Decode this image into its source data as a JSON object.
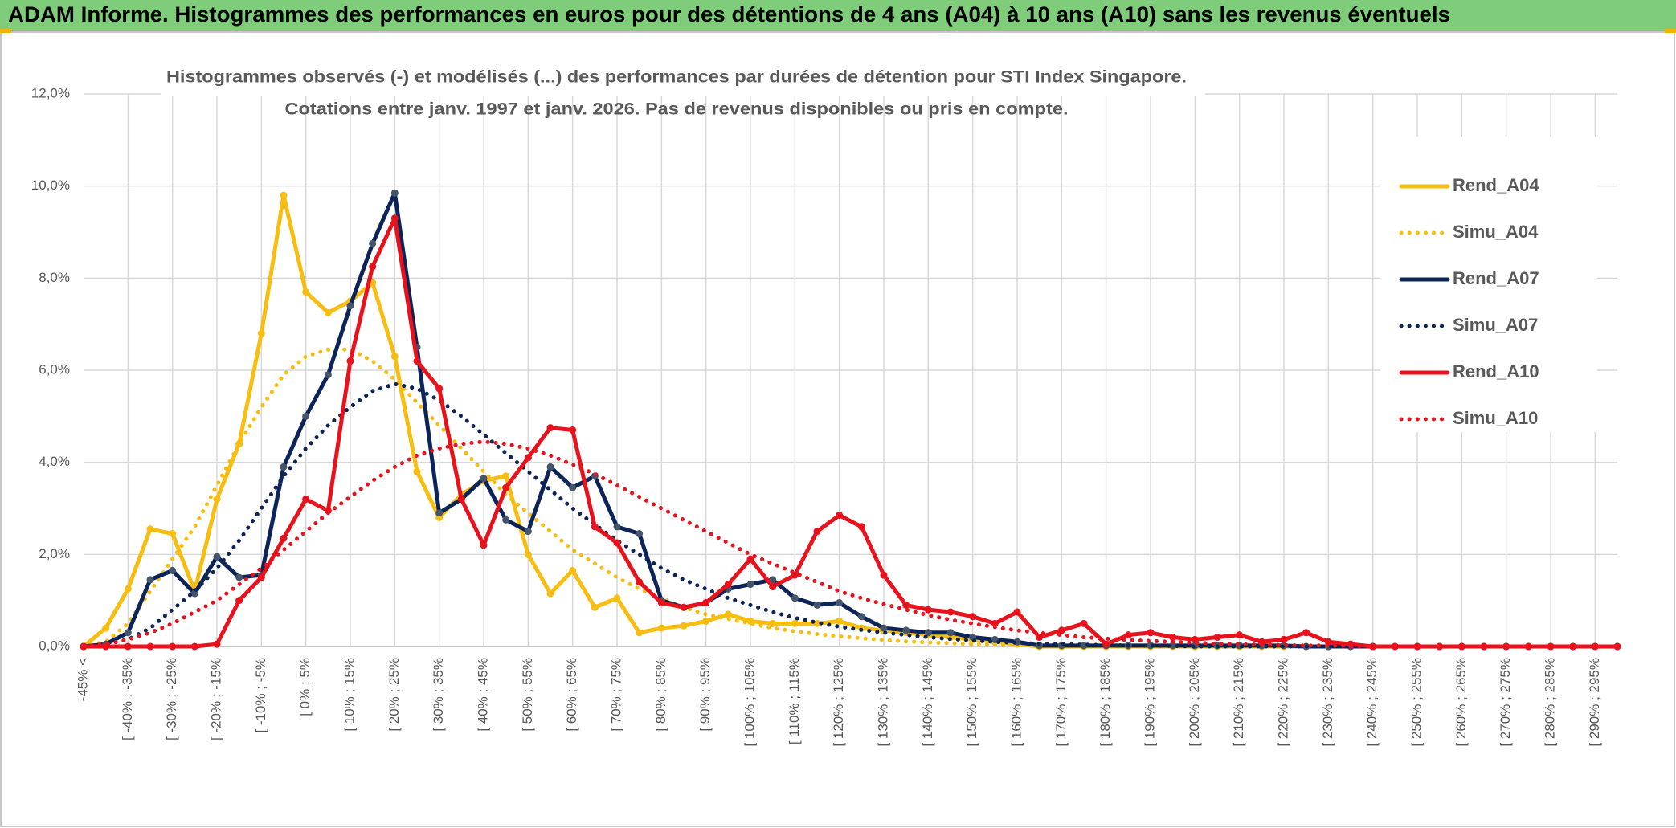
{
  "header": {
    "title": "ADAM Informe. Histogrammes des performances en euros pour des détentions de 4 ans (A04) à 10 ans (A10) sans les revenus éventuels"
  },
  "chart_data": {
    "type": "line",
    "title_lines": [
      "Histogrammes observés (-) et modélisés (...) des performances par durées de détention pour STI Index Singapore.",
      "Cotations entre janv. 1997 et janv. 2026. Pas de revenus disponibles ou pris en compte."
    ],
    "categories": [
      "-45% <",
      null,
      "[ -40% ; -35%",
      null,
      "[ -30% ; -25%",
      null,
      "[ -20% ; -15%",
      null,
      "[ -10% ; -5%",
      null,
      "[ 0% ; 5%",
      null,
      "[ 10% ; 15%",
      null,
      "[ 20% ; 25%",
      null,
      "[ 30% ; 35%",
      null,
      "[ 40% ; 45%",
      null,
      "[ 50% ; 55%",
      null,
      "[ 60% ; 65%",
      null,
      "[ 70% ; 75%",
      null,
      "[ 80% ; 85%",
      null,
      "[ 90% ; 95%",
      null,
      "[ 100% ; 105%",
      null,
      "[ 110% ; 115%",
      null,
      "[ 120% ; 125%",
      null,
      "[ 130% ; 135%",
      null,
      "[ 140% ; 145%",
      null,
      "[ 150% ; 155%",
      null,
      "[ 160% ; 165%",
      null,
      "[ 170% ; 175%",
      null,
      "[ 180% ; 185%",
      null,
      "[ 190% ; 195%",
      null,
      "[ 200% ; 205%",
      null,
      "[ 210% ; 215%",
      null,
      "[ 220% ; 225%",
      null,
      "[ 230% ; 235%",
      null,
      "[ 240% ; 245%",
      null,
      "[ 250% ; 255%",
      null,
      "[ 260% ; 265%",
      null,
      "[ 270% ; 275%",
      null,
      "[ 280% ; 285%",
      null,
      "[ 290% ; 295%",
      null
    ],
    "ylim": [
      0,
      12
    ],
    "yticks": [
      {
        "value": 0,
        "label": "0,0%"
      },
      {
        "value": 2,
        "label": "2,0%"
      },
      {
        "value": 4,
        "label": "4,0%"
      },
      {
        "value": 6,
        "label": "6,0%"
      },
      {
        "value": 8,
        "label": "8,0%"
      },
      {
        "value": 10,
        "label": "10,0%"
      },
      {
        "value": 12,
        "label": "12,0%"
      }
    ],
    "grid": true,
    "legend": "right",
    "series": [
      {
        "name": "Rend_A04",
        "color": "#f7bd10",
        "style": "solid",
        "markers": true,
        "values": [
          0,
          0.4,
          1.25,
          2.55,
          2.45,
          1.2,
          3.2,
          4.4,
          6.8,
          9.8,
          7.7,
          7.25,
          7.5,
          7.9,
          6.3,
          3.8,
          2.8,
          3.3,
          3.6,
          3.7,
          2.0,
          1.15,
          1.65,
          0.85,
          1.05,
          0.3,
          0.4,
          0.45,
          0.55,
          0.7,
          0.55,
          0.5,
          0.5,
          0.5,
          0.55,
          0.4,
          0.35,
          0.3,
          0.25,
          0.2,
          0.15,
          0.1,
          0.05,
          0,
          0,
          0,
          0,
          0,
          0,
          0,
          0,
          0,
          0,
          0,
          0,
          0,
          0,
          0,
          0,
          0,
          0,
          0,
          0,
          0,
          0,
          0,
          0,
          0,
          0,
          0
        ]
      },
      {
        "name": "Simu_A04",
        "color": "#f7bd10",
        "style": "dotted",
        "markers": false,
        "values": [
          0,
          0.1,
          0.5,
          1.2,
          1.9,
          2.6,
          3.5,
          4.4,
          5.2,
          5.9,
          6.3,
          6.45,
          6.45,
          6.2,
          5.8,
          5.3,
          4.8,
          4.3,
          3.8,
          3.3,
          2.9,
          2.5,
          2.1,
          1.8,
          1.5,
          1.25,
          1.05,
          0.85,
          0.7,
          0.6,
          0.5,
          0.4,
          0.33,
          0.27,
          0.22,
          0.18,
          0.14,
          0.11,
          0.09,
          0.07,
          0.05,
          0.04,
          0.03,
          0.02,
          0.01,
          0,
          0,
          0,
          0,
          0,
          0,
          0,
          0,
          0,
          0,
          0,
          0,
          0,
          0,
          0,
          0,
          0,
          0,
          0,
          0,
          0,
          0,
          0,
          0,
          0
        ]
      },
      {
        "name": "Rend_A07",
        "color": "#0c2457",
        "style": "solid",
        "markers": true,
        "values": [
          0,
          0.05,
          0.3,
          1.45,
          1.65,
          1.15,
          1.95,
          1.5,
          1.55,
          3.9,
          5.0,
          5.9,
          7.4,
          8.75,
          9.85,
          6.5,
          2.9,
          3.2,
          3.65,
          2.75,
          2.5,
          3.9,
          3.45,
          3.7,
          2.6,
          2.45,
          1.0,
          0.85,
          0.95,
          1.25,
          1.35,
          1.45,
          1.05,
          0.9,
          0.95,
          0.65,
          0.4,
          0.35,
          0.3,
          0.3,
          0.2,
          0.15,
          0.1,
          0.02,
          0.02,
          0.02,
          0.02,
          0.02,
          0.02,
          0.02,
          0.02,
          0.02,
          0.02,
          0.02,
          0.02,
          0,
          0,
          0,
          0,
          0,
          0,
          0,
          0,
          0,
          0,
          0,
          0,
          0,
          0,
          0
        ]
      },
      {
        "name": "Simu_A07",
        "color": "#0c2457",
        "style": "dotted",
        "markers": false,
        "values": [
          0,
          0.05,
          0.15,
          0.4,
          0.8,
          1.2,
          1.7,
          2.3,
          3.0,
          3.7,
          4.3,
          4.8,
          5.2,
          5.55,
          5.7,
          5.6,
          5.35,
          5.0,
          4.6,
          4.2,
          3.8,
          3.4,
          3.0,
          2.65,
          2.3,
          2.0,
          1.7,
          1.45,
          1.25,
          1.05,
          0.9,
          0.75,
          0.62,
          0.52,
          0.43,
          0.36,
          0.3,
          0.25,
          0.2,
          0.16,
          0.13,
          0.1,
          0.08,
          0.06,
          0.05,
          0.04,
          0.03,
          0.02,
          0.02,
          0.01,
          0,
          0,
          0,
          0,
          0,
          0,
          0,
          0,
          0,
          0,
          0,
          0,
          0,
          0,
          0,
          0,
          0,
          0,
          0,
          0
        ]
      },
      {
        "name": "Rend_A10",
        "color": "#e8121c",
        "style": "solid",
        "markers": true,
        "values": [
          0,
          0,
          0,
          0,
          0,
          0,
          0.05,
          1.0,
          1.5,
          2.35,
          3.2,
          2.95,
          6.2,
          8.25,
          9.3,
          6.2,
          5.6,
          3.2,
          2.2,
          3.45,
          4.1,
          4.75,
          4.7,
          2.6,
          2.25,
          1.4,
          0.95,
          0.85,
          0.95,
          1.35,
          1.9,
          1.3,
          1.55,
          2.5,
          2.85,
          2.6,
          1.55,
          0.9,
          0.8,
          0.75,
          0.65,
          0.5,
          0.75,
          0.2,
          0.35,
          0.5,
          0.05,
          0.25,
          0.3,
          0.2,
          0.15,
          0.2,
          0.25,
          0.1,
          0.15,
          0.3,
          0.1,
          0.05,
          0,
          0,
          0,
          0,
          0,
          0,
          0,
          0,
          0,
          0,
          0,
          0
        ]
      },
      {
        "name": "Simu_A10",
        "color": "#e8121c",
        "style": "dotted",
        "markers": false,
        "values": [
          0,
          0.05,
          0.15,
          0.3,
          0.5,
          0.75,
          1.0,
          1.35,
          1.7,
          2.1,
          2.5,
          2.9,
          3.25,
          3.6,
          3.9,
          4.15,
          4.3,
          4.4,
          4.45,
          4.4,
          4.3,
          4.15,
          3.95,
          3.75,
          3.5,
          3.25,
          3.0,
          2.75,
          2.5,
          2.25,
          2.0,
          1.8,
          1.6,
          1.4,
          1.2,
          1.05,
          0.92,
          0.8,
          0.68,
          0.58,
          0.5,
          0.42,
          0.35,
          0.3,
          0.25,
          0.2,
          0.17,
          0.14,
          0.12,
          0.1,
          0.08,
          0.06,
          0.05,
          0.04,
          0.03,
          0.02,
          0.02,
          0.01,
          0,
          0,
          0,
          0,
          0,
          0,
          0,
          0,
          0,
          0,
          0,
          0
        ]
      }
    ]
  }
}
